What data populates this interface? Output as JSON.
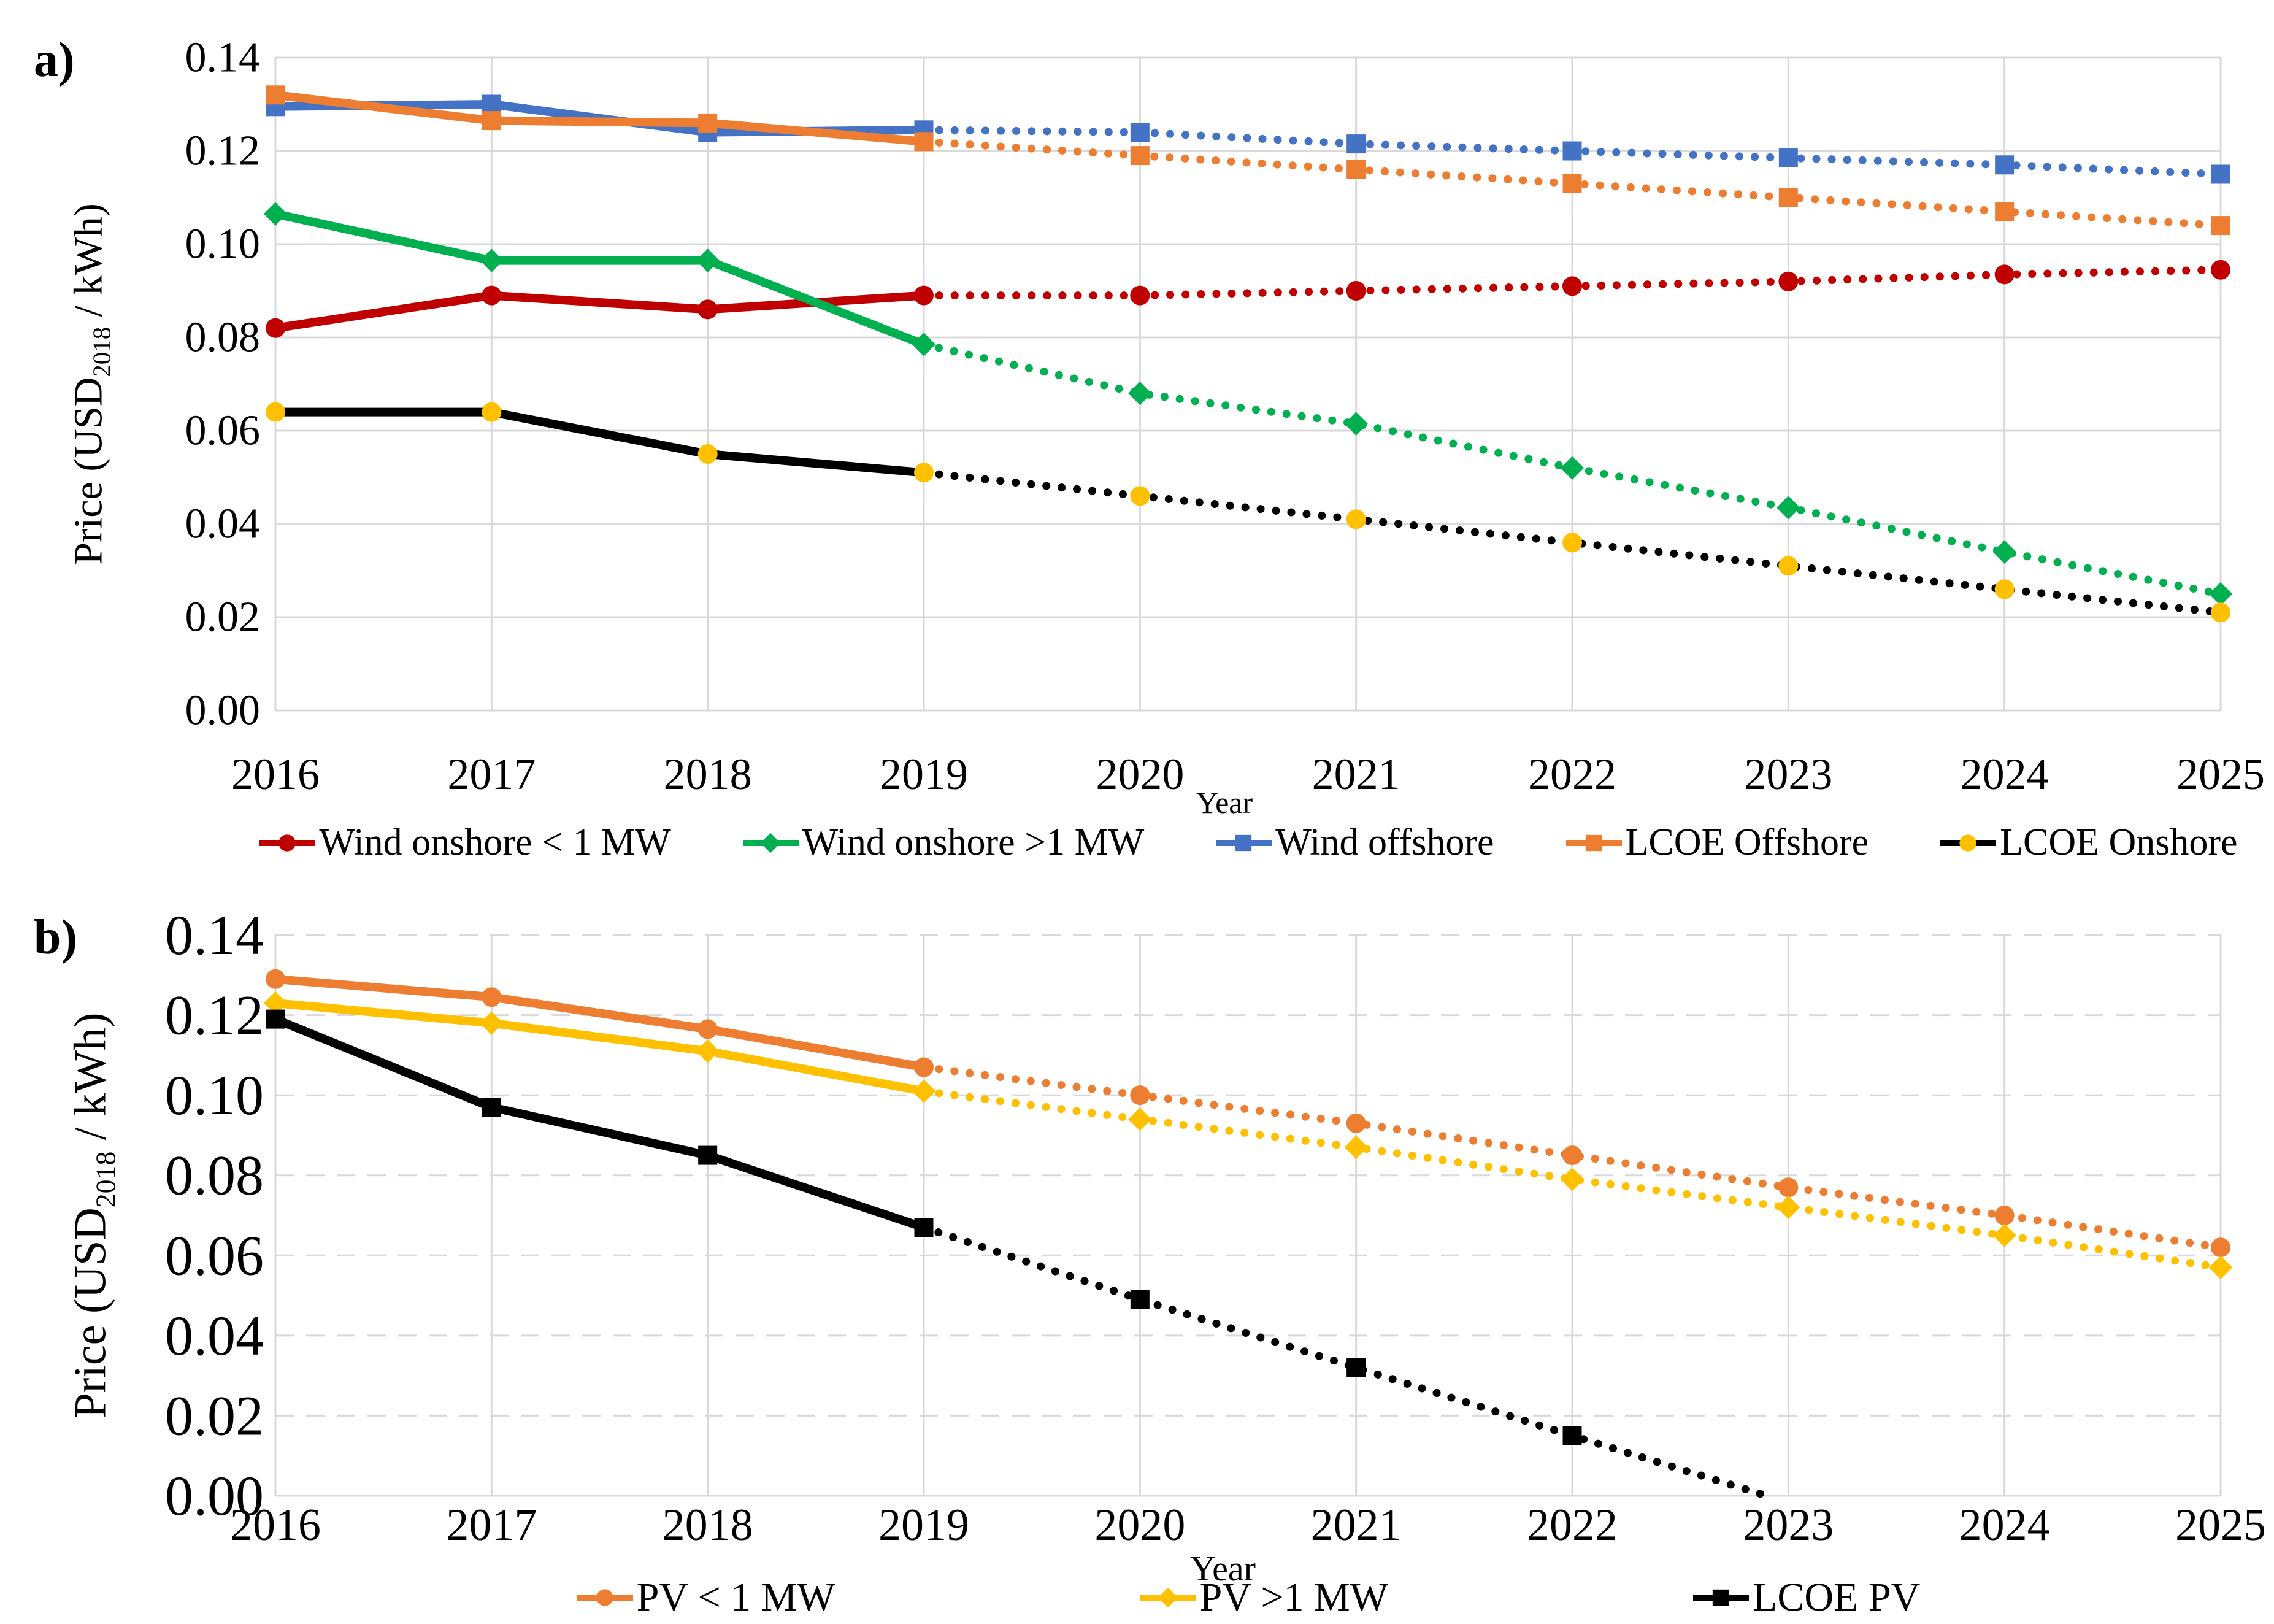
{
  "chart_data": [
    {
      "type": "line",
      "panel_label": "a)",
      "xlabel": "Year",
      "ylabel": {
        "prefix": "Price (USD",
        "sub": "2018",
        "suffix": " / kWh)"
      },
      "x": [
        2016,
        2017,
        2018,
        2019,
        2020,
        2021,
        2022,
        2023,
        2024,
        2025
      ],
      "xtick_labels": [
        "2016",
        "2017",
        "2018",
        "2019",
        "2020",
        "2021",
        "2022",
        "2023",
        "2024",
        "2025"
      ],
      "ylim": [
        0,
        0.14
      ],
      "ytick_labels": [
        "0.00",
        "0.02",
        "0.04",
        "0.06",
        "0.08",
        "0.10",
        "0.12",
        "0.14"
      ],
      "grid": {
        "horizontal": "solid",
        "vertical": "solid",
        "color": "#D9D9D9"
      },
      "forecast_split_x": 2019,
      "legend_position": "bottom",
      "series": [
        {
          "name": "Wind onshore < 1 MW",
          "color": "#C00000",
          "marker": "circle",
          "marker_color": "#C00000",
          "values": [
            0.082,
            0.089,
            0.086,
            0.089,
            0.089,
            0.09,
            0.091,
            0.092,
            0.0935,
            0.0945
          ]
        },
        {
          "name": "Wind onshore >1 MW",
          "color": "#00B050",
          "marker": "diamond",
          "marker_color": "#00B050",
          "values": [
            0.1065,
            0.0965,
            0.0965,
            0.0785,
            0.068,
            0.0615,
            0.052,
            0.0435,
            0.034,
            0.025
          ]
        },
        {
          "name": "Wind offshore",
          "color": "#4472C4",
          "marker": "square",
          "marker_color": "#4472C4",
          "values": [
            0.1295,
            0.13,
            0.124,
            0.1245,
            0.124,
            0.1215,
            0.12,
            0.1185,
            0.117,
            0.115
          ]
        },
        {
          "name": "LCOE Offshore",
          "color": "#ED7D31",
          "marker": "square",
          "marker_color": "#ED7D31",
          "values": [
            0.132,
            0.1265,
            0.126,
            0.122,
            0.119,
            0.116,
            0.113,
            0.11,
            0.107,
            0.104
          ]
        },
        {
          "name": "LCOE Onshore",
          "color": "#000000",
          "marker": "circle",
          "marker_color": "#FFC000",
          "values": [
            0.064,
            0.064,
            0.055,
            0.051,
            0.046,
            0.041,
            0.036,
            0.031,
            0.026,
            0.021
          ]
        }
      ]
    },
    {
      "type": "line",
      "panel_label": "b)",
      "xlabel": "Year",
      "ylabel": {
        "prefix": "Price (USD",
        "sub": "2018",
        "suffix": " / kWh)"
      },
      "x": [
        2016,
        2017,
        2018,
        2019,
        2020,
        2021,
        2022,
        2023,
        2024,
        2025
      ],
      "xtick_labels": [
        "2016",
        "2017",
        "2018",
        "2019",
        "2020",
        "2021",
        "2022",
        "2023",
        "2024",
        "2025"
      ],
      "ylim": [
        0,
        0.14
      ],
      "ytick_labels": [
        "0.00",
        "0.02",
        "0.04",
        "0.06",
        "0.08",
        "0.10",
        "0.12",
        "0.14"
      ],
      "grid": {
        "horizontal": "dashed",
        "vertical": "solid",
        "color": "#D9D9D9"
      },
      "forecast_split_x": 2019,
      "legend_position": "bottom",
      "series": [
        {
          "name": "PV < 1 MW",
          "color": "#ED7D31",
          "marker": "circle",
          "marker_color": "#ED7D31",
          "values": [
            0.129,
            0.1245,
            0.1165,
            0.107,
            0.1,
            0.093,
            0.085,
            0.077,
            0.07,
            0.062
          ]
        },
        {
          "name": "PV >1 MW",
          "color": "#FFC000",
          "marker": "diamond",
          "marker_color": "#FFC000",
          "values": [
            0.123,
            0.118,
            0.111,
            0.101,
            0.094,
            0.087,
            0.079,
            0.072,
            0.065,
            0.057
          ]
        },
        {
          "name": "LCOE PV",
          "color": "#000000",
          "marker": "square",
          "marker_color": "#000000",
          "values": [
            0.119,
            0.097,
            0.085,
            0.067,
            0.049,
            0.032,
            0.015,
            null,
            null,
            null
          ],
          "terminal_point": {
            "x": 2022.9,
            "y": 0.0
          }
        }
      ]
    }
  ]
}
